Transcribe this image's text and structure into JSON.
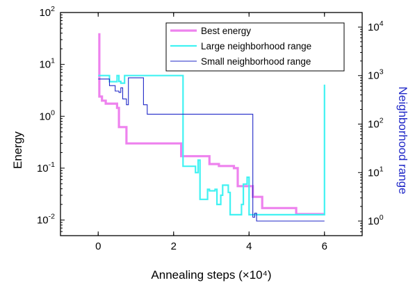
{
  "chart_data": {
    "type": "line",
    "xlabel": "Annealing steps (×10⁴)",
    "ylabel_left": "Energy",
    "ylabel_right": "Neighborhood range",
    "xlim": [
      -1,
      7
    ],
    "ylim_left": [
      0.005,
      100
    ],
    "ylim_right": [
      0.5,
      20000
    ],
    "yscale_left": "log",
    "yscale_right": "log",
    "x_ticks": [
      0,
      2,
      4,
      6
    ],
    "x_tick_labels": [
      "0",
      "2",
      "4",
      "6"
    ],
    "y_left_ticks": [
      {
        "value": 0.01,
        "base": "10",
        "exp": "-2"
      },
      {
        "value": 0.1,
        "base": "10",
        "exp": "-1"
      },
      {
        "value": 1,
        "base": "10",
        "exp": "0"
      },
      {
        "value": 10,
        "base": "10",
        "exp": "1"
      },
      {
        "value": 100,
        "base": "10",
        "exp": "2"
      }
    ],
    "y_right_ticks": [
      {
        "value": 1,
        "base": "10",
        "exp": "0"
      },
      {
        "value": 10,
        "base": "10",
        "exp": "1"
      },
      {
        "value": 100,
        "base": "10",
        "exp": "2"
      },
      {
        "value": 1000,
        "base": "10",
        "exp": "3"
      },
      {
        "value": 10000,
        "base": "10",
        "exp": "4"
      }
    ],
    "legend_placement": "top-right",
    "series": [
      {
        "name": "Best energy",
        "axis": "left",
        "color": "#ee82ee",
        "step": true,
        "points": [
          [
            0,
            38
          ],
          [
            0.03,
            2.4
          ],
          [
            0.1,
            2.0
          ],
          [
            0.2,
            1.75
          ],
          [
            0.5,
            1.45
          ],
          [
            0.55,
            0.62
          ],
          [
            0.75,
            0.3
          ],
          [
            2.15,
            0.3
          ],
          [
            2.2,
            0.17
          ],
          [
            2.9,
            0.17
          ],
          [
            2.95,
            0.12
          ],
          [
            3.2,
            0.11
          ],
          [
            3.6,
            0.1
          ],
          [
            3.7,
            0.045
          ],
          [
            4.1,
            0.028
          ],
          [
            4.3,
            0.028
          ],
          [
            4.35,
            0.017
          ],
          [
            5.2,
            0.017
          ],
          [
            5.25,
            0.013
          ],
          [
            6.0,
            0.013
          ]
        ]
      },
      {
        "name": "Large neighborhood range",
        "axis": "right",
        "color": "#40f2f2",
        "step": true,
        "points": [
          [
            0,
            1000
          ],
          [
            0.3,
            750
          ],
          [
            0.5,
            1000
          ],
          [
            0.55,
            760
          ],
          [
            0.6,
            700
          ],
          [
            0.7,
            1000
          ],
          [
            2.2,
            1000
          ],
          [
            2.25,
            13.5
          ],
          [
            2.55,
            13.5
          ],
          [
            2.58,
            10
          ],
          [
            2.65,
            18
          ],
          [
            2.7,
            2.8
          ],
          [
            2.9,
            4.5
          ],
          [
            2.95,
            4.2
          ],
          [
            3.1,
            4.5
          ],
          [
            3.15,
            2.2
          ],
          [
            3.25,
            3.4
          ],
          [
            3.3,
            5.5
          ],
          [
            3.45,
            3.9
          ],
          [
            3.5,
            1.35
          ],
          [
            3.75,
            1.35
          ],
          [
            3.8,
            2.2
          ],
          [
            3.85,
            5.8
          ],
          [
            3.95,
            8.0
          ],
          [
            4.0,
            1.35
          ],
          [
            6.0,
            650
          ]
        ]
      },
      {
        "name": "Small neighborhood range",
        "axis": "right",
        "color": "#1f27c7",
        "step": true,
        "points": [
          [
            0,
            850
          ],
          [
            0.3,
            620
          ],
          [
            0.45,
            480
          ],
          [
            0.55,
            450
          ],
          [
            0.6,
            560
          ],
          [
            0.65,
            330
          ],
          [
            0.75,
            250
          ],
          [
            0.8,
            900
          ],
          [
            1.2,
            250
          ],
          [
            1.3,
            160
          ],
          [
            4.1,
            1.2
          ],
          [
            4.15,
            1.45
          ],
          [
            4.2,
            1.0
          ],
          [
            6.0,
            1.0
          ]
        ]
      }
    ]
  }
}
